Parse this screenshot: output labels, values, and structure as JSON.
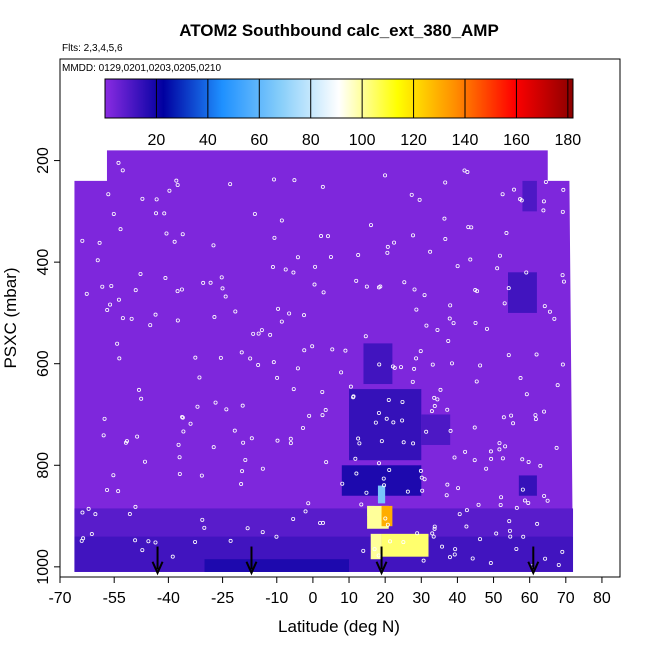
{
  "chart_data": {
    "type": "heatmap",
    "title": "ATOM2 Southbound calc_ext_380_AMP",
    "flights_label": "Flts: 2,3,4,5,6",
    "dates_label": "MMDD: 0129,0201,0203,0205,0210",
    "xlabel": "Latitude (deg N)",
    "ylabel": "PSXC (mbar)",
    "xlim": [
      -70,
      85
    ],
    "ylim": [
      1020,
      0
    ],
    "x_ticks": [
      -70,
      -55,
      -40,
      -25,
      -10,
      0,
      10,
      20,
      30,
      40,
      50,
      60,
      70,
      80
    ],
    "x_tick_labels": [
      "-70",
      "-55",
      "-40",
      "-25",
      "-10",
      "0",
      "10",
      "20",
      "30",
      "40",
      "50",
      "60",
      "70",
      "80"
    ],
    "y_ticks": [
      200,
      400,
      600,
      800,
      1000
    ],
    "y_tick_labels": [
      "200",
      "400",
      "600",
      "800",
      "1000"
    ],
    "colorbar": {
      "range": [
        0,
        182
      ],
      "ticks": [
        20,
        40,
        60,
        80,
        100,
        120,
        140,
        160,
        180
      ],
      "tick_labels": [
        "20",
        "40",
        "60",
        "80",
        "100",
        "120",
        "140",
        "160",
        "180"
      ],
      "colors": [
        "#8a2be2",
        "#0000a0",
        "#1e90ff",
        "#87cefa",
        "#ffffff",
        "#ffff00",
        "#ff8c00",
        "#ff0000",
        "#8b0000"
      ]
    },
    "data_extent": {
      "lat": [
        -66,
        72
      ],
      "pressure": [
        180,
        1010
      ]
    },
    "background_value": 2,
    "features": [
      {
        "lat": [
          -66,
          72
        ],
        "p": [
          940,
          1010
        ],
        "value": 12
      },
      {
        "lat": [
          -66,
          72
        ],
        "p": [
          885,
          940
        ],
        "value": 8
      },
      {
        "lat": [
          -30,
          10
        ],
        "p": [
          985,
          1010
        ],
        "value": 18
      },
      {
        "lat": [
          8,
          30
        ],
        "p": [
          800,
          860
        ],
        "value": 18
      },
      {
        "lat": [
          10,
          30
        ],
        "p": [
          650,
          790
        ],
        "value": 14
      },
      {
        "lat": [
          14,
          22
        ],
        "p": [
          560,
          640
        ],
        "value": 12
      },
      {
        "lat": [
          30,
          38
        ],
        "p": [
          700,
          760
        ],
        "value": 10
      },
      {
        "lat": [
          54,
          62
        ],
        "p": [
          420,
          500
        ],
        "value": 12
      },
      {
        "lat": [
          58,
          62
        ],
        "p": [
          240,
          300
        ],
        "value": 10
      },
      {
        "lat": [
          57,
          62
        ],
        "p": [
          820,
          860
        ],
        "value": 14
      },
      {
        "lat": [
          15,
          17
        ],
        "p": [
          880,
          900
        ],
        "value": 60
      },
      {
        "lat": [
          15,
          21
        ],
        "p": [
          880,
          925
        ],
        "value": 100
      },
      {
        "lat": [
          19,
          22
        ],
        "p": [
          880,
          920
        ],
        "value": 130
      },
      {
        "lat": [
          16,
          19
        ],
        "p": [
          935,
          985
        ],
        "value": 100
      },
      {
        "lat": [
          19,
          32
        ],
        "p": [
          935,
          980
        ],
        "value": 104
      },
      {
        "lat": [
          18,
          20
        ],
        "p": [
          840,
          875
        ],
        "value": 65
      }
    ],
    "arrows_lat": [
      -43,
      -17,
      19,
      61
    ]
  }
}
